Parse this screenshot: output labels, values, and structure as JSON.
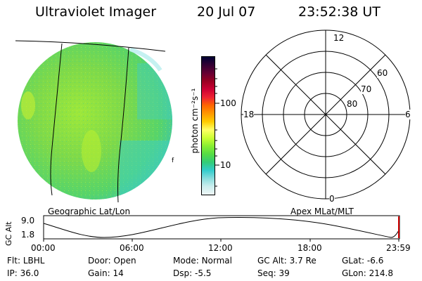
{
  "header": {
    "title": "Ultraviolet Imager",
    "date": "20 Jul 07",
    "time": "23:52:38 UT"
  },
  "colorbar": {
    "unit_label": "photon cm⁻²s⁻¹",
    "ticks": [
      "100",
      "10"
    ],
    "colors": [
      "#000033",
      "#330033",
      "#660033",
      "#990022",
      "#cc0033",
      "#ee2233",
      "#ff6600",
      "#ff9900",
      "#ffcc00",
      "#ffff66",
      "#ccff33",
      "#88ee33",
      "#55dd44",
      "#33cc77",
      "#33cccc",
      "#88dddd",
      "#cceeee",
      "#eef6f6"
    ]
  },
  "left_panel": {
    "caption": "Geographic Lat/Lon",
    "marker": "f"
  },
  "right_panel": {
    "caption": "Apex MLat/MLT",
    "labels": {
      "top": "12",
      "left": "18",
      "right": "6",
      "bottom": "0",
      "lat60": "60",
      "lat70": "70",
      "lat80": "80"
    }
  },
  "altitude_plot": {
    "ylabel": "GC Alt",
    "yticks": [
      "9.0",
      "1.8"
    ],
    "xticks": [
      "00:00",
      "06:00",
      "12:00",
      "18:00",
      "23:59"
    ]
  },
  "info": {
    "row1": [
      {
        "label": "Flt:",
        "value": "LBHL"
      },
      {
        "label": "Door:",
        "value": "Open"
      },
      {
        "label": "Mode:",
        "value": "Normal"
      },
      {
        "label": "GC Alt:",
        "value": "3.7 Re"
      },
      {
        "label": "GLat:",
        "value": "-6.6"
      }
    ],
    "row2": [
      {
        "label": "IP:",
        "value": "36.0"
      },
      {
        "label": "Gain:",
        "value": "14"
      },
      {
        "label": "Dsp:",
        "value": "-5.5"
      },
      {
        "label": "Seq:",
        "value": "39"
      },
      {
        "label": "GLon:",
        "value": "214.8"
      }
    ]
  }
}
